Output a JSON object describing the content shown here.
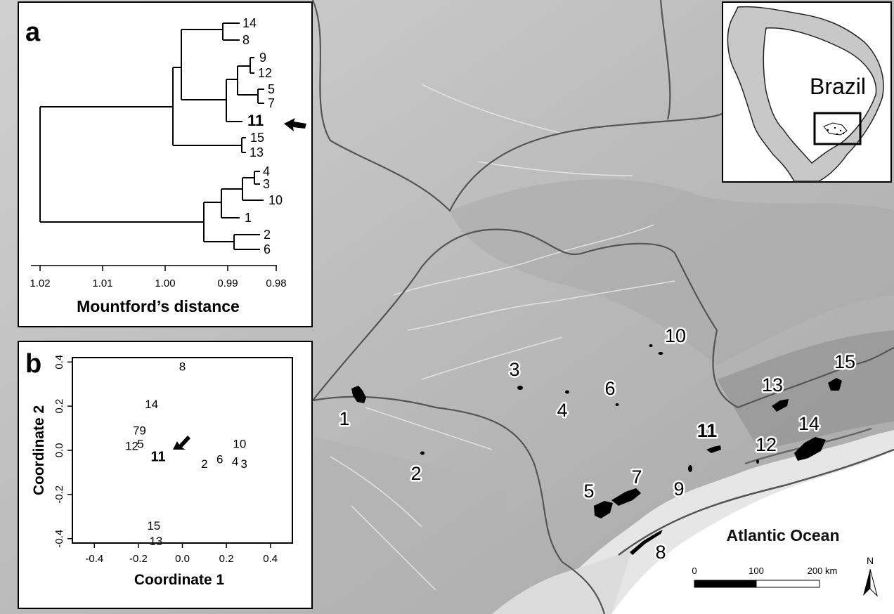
{
  "panel_a": {
    "letter": "a",
    "xlabel": "Mountford’s distance",
    "ticks": [
      "1.02",
      "1.01",
      "1.00",
      "0.99",
      "0.98"
    ],
    "leaves": [
      "14",
      "8",
      "9",
      "12",
      "5",
      "7",
      "11",
      "15",
      "13",
      "4",
      "3",
      "10",
      "1",
      "2",
      "6"
    ],
    "highlighted_leaf": "11"
  },
  "panel_b": {
    "letter": "b",
    "xlabel": "Coordinate 1",
    "ylabel": "Coordinate 2",
    "xticks": [
      "-0.4",
      "-0.2",
      "0.0",
      "0.2",
      "0.4"
    ],
    "yticks": [
      "0.4",
      "0.2",
      "0.0",
      "-0.2",
      "-0.4"
    ],
    "xlim": [
      -0.5,
      0.5
    ],
    "ylim": [
      -0.42,
      0.42
    ],
    "points": [
      {
        "label": "8",
        "x": 0.0,
        "y": 0.38
      },
      {
        "label": "14",
        "x": -0.14,
        "y": 0.21
      },
      {
        "label": "7",
        "x": -0.21,
        "y": 0.09
      },
      {
        "label": "9",
        "x": -0.18,
        "y": 0.09
      },
      {
        "label": "12",
        "x": -0.23,
        "y": 0.02
      },
      {
        "label": "5",
        "x": -0.19,
        "y": 0.03
      },
      {
        "label": "11",
        "x": -0.11,
        "y": -0.03
      },
      {
        "label": "10",
        "x": 0.26,
        "y": 0.03
      },
      {
        "label": "2",
        "x": 0.1,
        "y": -0.06
      },
      {
        "label": "6",
        "x": 0.17,
        "y": -0.04
      },
      {
        "label": "4",
        "x": 0.24,
        "y": -0.05
      },
      {
        "label": "3",
        "x": 0.28,
        "y": -0.06
      },
      {
        "label": "15",
        "x": -0.13,
        "y": -0.34
      },
      {
        "label": "13",
        "x": -0.12,
        "y": -0.41
      }
    ]
  },
  "map": {
    "site_labels": [
      "1",
      "2",
      "3",
      "4",
      "5",
      "6",
      "7",
      "8",
      "9",
      "10",
      "11",
      "12",
      "13",
      "14",
      "15"
    ],
    "ocean_label": "Atlantic Ocean",
    "inset_country": "Brazil",
    "scale_labels": [
      "0",
      "100",
      "200 km"
    ],
    "north_label": "N"
  },
  "colors": {
    "land": "#c4c4c4",
    "highland": "#9d9d9d",
    "lowland": "#e2e2e2",
    "ocean": "#ffffff",
    "border": "#555555",
    "site": "#000000"
  }
}
